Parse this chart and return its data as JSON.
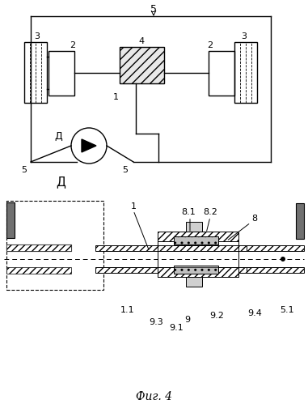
{
  "title": "Фиг. 4",
  "bg_color": "#ffffff",
  "line_color": "#000000",
  "hatch_color": "#000000",
  "fig_width": 3.81,
  "fig_height": 4.99,
  "dpi": 100
}
